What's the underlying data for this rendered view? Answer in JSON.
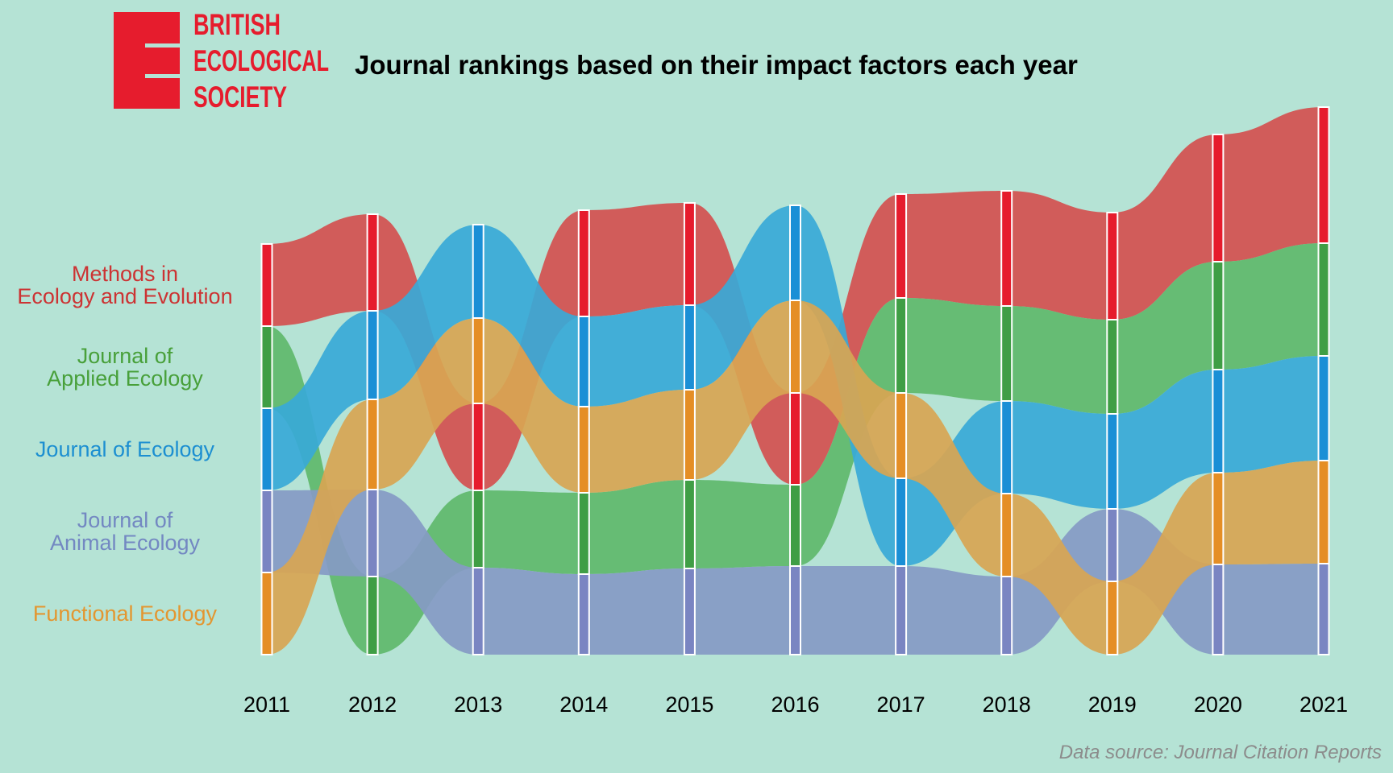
{
  "logo": {
    "lines": [
      "BRITISH",
      "ECOLOGICAL",
      "SOCIETY"
    ],
    "color": "#e61c2d"
  },
  "chart_data": {
    "type": "bump",
    "title": "Journal rankings based on their impact factors each year",
    "source": "Data source: Journal Citation Reports",
    "years": [
      "2011",
      "2012",
      "2013",
      "2014",
      "2015",
      "2016",
      "2017",
      "2018",
      "2019",
      "2020",
      "2021"
    ],
    "rank_labels": [
      {
        "text": [
          "Methods in",
          "Ecology and Evolution"
        ],
        "color": "#cc3333"
      },
      {
        "text": [
          "Journal of",
          "Applied Ecology"
        ],
        "color": "#48a03a"
      },
      {
        "text": [
          "Journal of Ecology"
        ],
        "color": "#1c8fd1"
      },
      {
        "text": [
          "Journal of",
          "Animal Ecology"
        ],
        "color": "#7388c2"
      },
      {
        "text": [
          "Functional Ecology"
        ],
        "color": "#e39630"
      }
    ],
    "series": [
      {
        "name": "Methods in Ecology and Evolution",
        "color": "#d4504f",
        "barColor": "#e61c2d",
        "ranks": [
          1,
          1,
          3,
          1,
          1,
          3,
          1,
          1,
          1,
          1,
          1
        ]
      },
      {
        "name": "Journal of Applied Ecology",
        "color": "#60b86b",
        "barColor": "#3f9e45",
        "ranks": [
          2,
          5,
          4,
          4,
          4,
          4,
          2,
          2,
          2,
          2,
          2
        ]
      },
      {
        "name": "Journal of Ecology",
        "color": "#38a9d7",
        "barColor": "#1a8fd6",
        "ranks": [
          3,
          2,
          1,
          2,
          2,
          1,
          4,
          3,
          3,
          3,
          3
        ]
      },
      {
        "name": "Journal of Animal Ecology",
        "color": "#869ac4",
        "barColor": "#7a85c2",
        "ranks": [
          4,
          4,
          5,
          5,
          5,
          5,
          5,
          5,
          4,
          5,
          5
        ]
      },
      {
        "name": "Functional Ecology",
        "color": "#d8a552",
        "barColor": "#e58e25",
        "ranks": [
          5,
          3,
          2,
          3,
          3,
          2,
          3,
          4,
          5,
          4,
          4
        ]
      }
    ],
    "stack_values": [
      [
        102,
        102,
        102,
        102,
        102
      ],
      [
        120,
        110,
        112,
        108,
        97
      ],
      [
        116,
        106,
        108,
        96,
        108
      ],
      [
        132,
        112,
        107,
        101,
        100
      ],
      [
        127,
        105,
        112,
        110,
        107
      ],
      [
        118,
        115,
        114,
        101,
        110
      ],
      [
        129,
        118,
        106,
        109,
        110
      ],
      [
        143,
        118,
        115,
        103,
        97
      ],
      [
        133,
        117,
        118,
        90,
        91
      ],
      [
        158,
        134,
        128,
        114,
        112
      ],
      [
        169,
        140,
        130,
        128,
        113
      ]
    ]
  }
}
